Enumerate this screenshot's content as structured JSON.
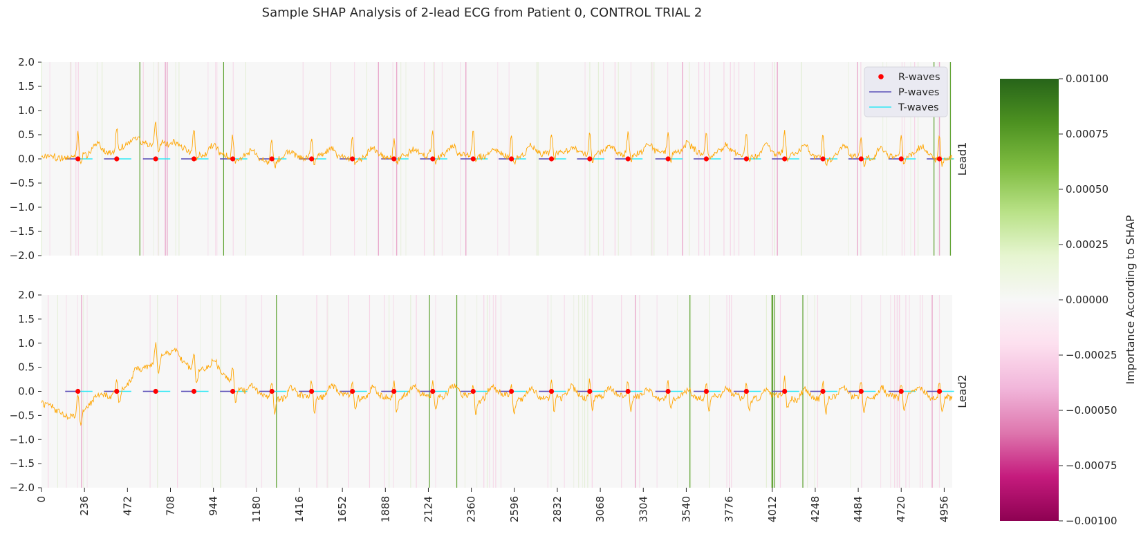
{
  "chart_data": {
    "type": "line",
    "title": "Sample SHAP Analysis of 2-lead ECG from Patient 0, CONTROL TRIAL 2",
    "panels": [
      {
        "name": "Lead1",
        "ylim": [
          -2.0,
          2.0
        ],
        "yticks": [
          "2.0",
          "1.5",
          "1.0",
          "0.5",
          "0.0",
          "−0.5",
          "−1.0",
          "−1.5",
          "−2.0"
        ],
        "strong_green_lines": [
          540,
          1000,
          4900,
          4990
        ],
        "strong_pink_lines": [
          680,
          690,
          1850,
          1950,
          2330,
          3520,
          4040,
          4480,
          4930
        ]
      },
      {
        "name": "Lead2",
        "ylim": [
          -2.0,
          2.0
        ],
        "yticks": [
          "2.0",
          "1.5",
          "1.0",
          "0.5",
          "0.0",
          "−0.5",
          "−1.0",
          "−1.5",
          "−2.0"
        ],
        "strong_green_lines": [
          1290,
          2130,
          2280,
          3560,
          4010,
          4015,
          4025,
          4180
        ],
        "strong_pink_lines": [
          220,
          3260,
          4890
        ]
      }
    ],
    "x": {
      "min": 0,
      "max": 5000,
      "ticks": [
        0,
        236,
        472,
        708,
        944,
        1180,
        1416,
        1652,
        1888,
        2124,
        2360,
        2596,
        2832,
        3068,
        3304,
        3540,
        3776,
        4012,
        4248,
        4484,
        4720,
        4956
      ]
    },
    "r_peaks": [
      200,
      413,
      627,
      837,
      1050,
      1265,
      1483,
      1707,
      1935,
      2148,
      2370,
      2580,
      2800,
      3010,
      3220,
      3440,
      3650,
      3870,
      4080,
      4290,
      4500,
      4720,
      4930
    ],
    "legend": {
      "placement": "top-right",
      "items": [
        {
          "label": "R-waves",
          "color": "#ff0000",
          "kind": "dot"
        },
        {
          "label": "P-waves",
          "color": "#5b50b8",
          "kind": "line"
        },
        {
          "label": "T-waves",
          "color": "#2ee8f5",
          "kind": "line"
        }
      ]
    },
    "colorbar": {
      "label": "Importance According to SHAP",
      "range": [
        -0.001,
        0.001
      ],
      "ticks": [
        "0.00100",
        "0.00075",
        "0.00050",
        "0.00025",
        "0.00000",
        "−0.00025",
        "−0.00050",
        "−0.00075",
        "−0.00100"
      ],
      "colormap": "PiYG"
    },
    "colors": {
      "ecg": "#ffa500",
      "background": "#f7f7f7",
      "green": "#5aa02c",
      "pink": "#e9a8cb"
    }
  }
}
